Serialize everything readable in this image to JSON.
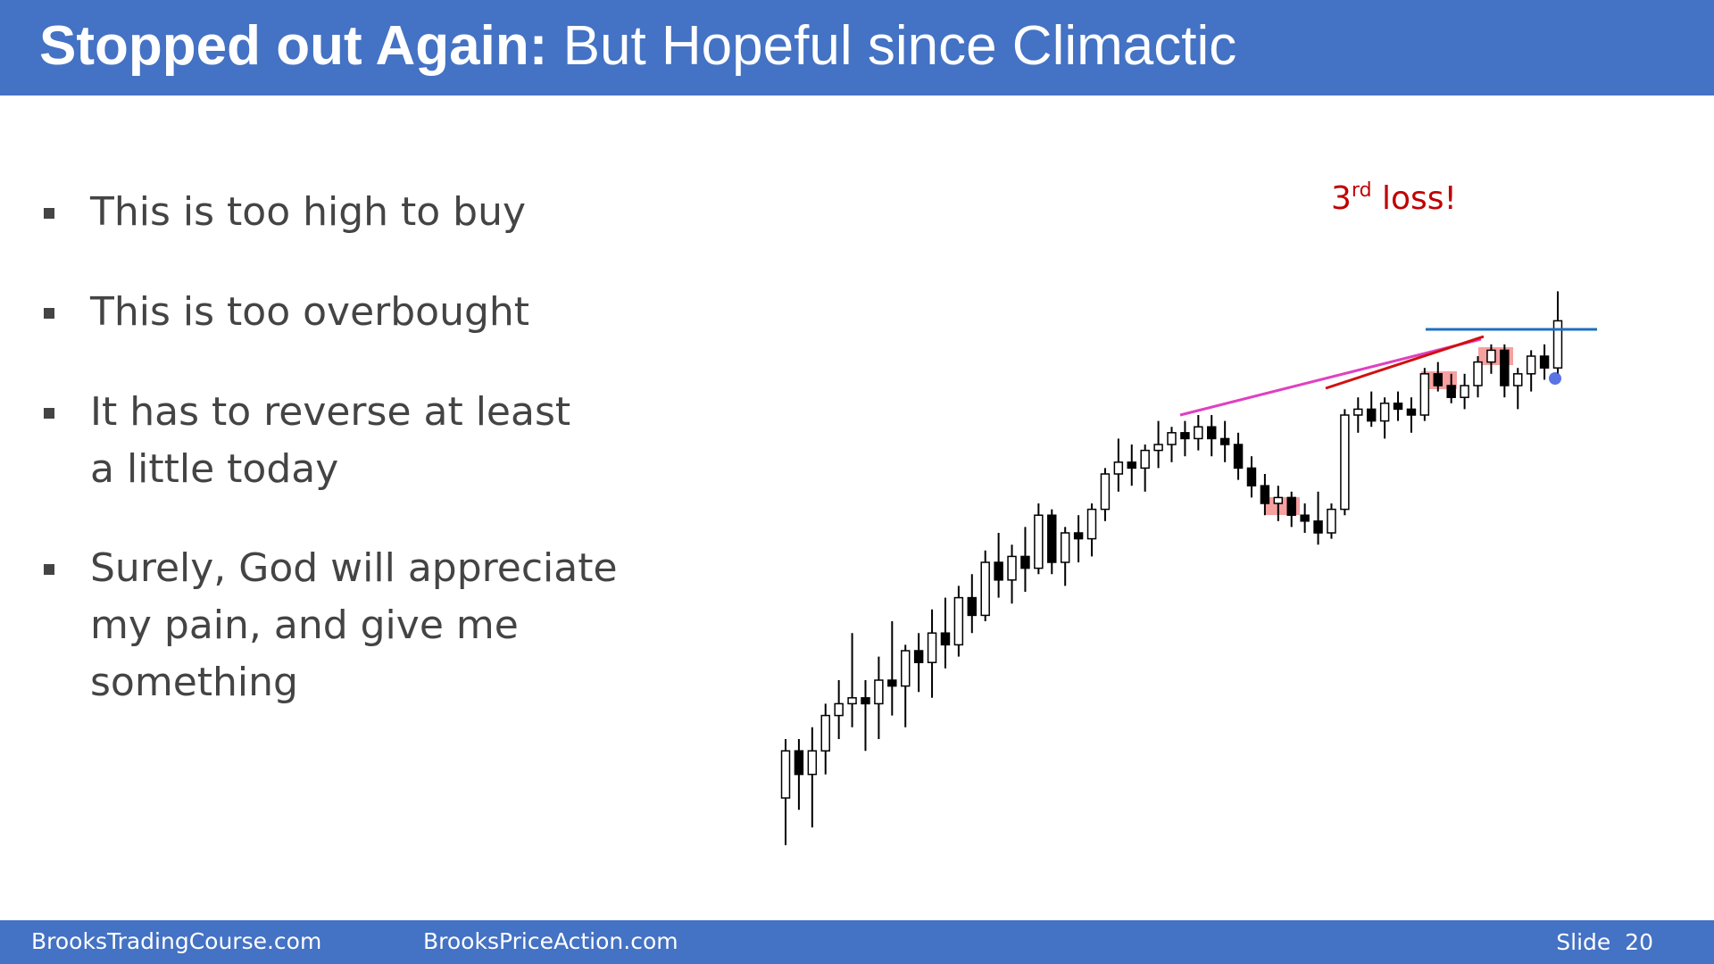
{
  "header": {
    "title_bold": "Stopped out Again:",
    "title_rest": " But Hopeful since Climactic"
  },
  "bullets": [
    [
      "This is too high to buy"
    ],
    [
      "This is too overbought"
    ],
    [
      "It has to reverse at least",
      "a little today"
    ],
    [
      "Surely, God will appreciate",
      "my pain, and give me",
      "something"
    ]
  ],
  "chart_data": {
    "type": "candlestick",
    "annotation": [
      "3",
      "rd",
      " loss!"
    ],
    "ylim": [
      0,
      100
    ],
    "open": [
      10,
      18,
      14,
      18,
      24,
      26,
      27,
      26,
      30,
      29,
      35,
      33,
      38,
      36,
      44,
      41,
      50,
      47,
      51,
      49,
      58,
      50,
      55,
      54,
      59,
      65,
      67,
      66,
      69,
      70,
      72,
      71,
      73,
      71,
      70,
      66,
      63,
      60,
      61,
      58,
      57,
      55,
      59,
      75,
      76,
      74,
      77,
      76,
      75,
      82,
      80,
      78,
      80,
      84,
      86,
      80,
      82,
      85,
      83
    ],
    "high": [
      20,
      20,
      22,
      26,
      30,
      38,
      30,
      34,
      40,
      36,
      38,
      42,
      44,
      46,
      48,
      52,
      55,
      53,
      56,
      60,
      59,
      56,
      58,
      60,
      66,
      71,
      70,
      70,
      74,
      73,
      74,
      75,
      75,
      74,
      72,
      68,
      65,
      63,
      62,
      60,
      62,
      60,
      76,
      78,
      79,
      78,
      79,
      78,
      83,
      84,
      82,
      82,
      85,
      87,
      87,
      83,
      86,
      87,
      96
    ],
    "low": [
      2,
      8,
      5,
      14,
      20,
      22,
      18,
      20,
      24,
      22,
      28,
      27,
      32,
      34,
      38,
      40,
      44,
      43,
      45,
      48,
      48,
      46,
      50,
      51,
      57,
      62,
      63,
      62,
      66,
      67,
      68,
      69,
      68,
      67,
      64,
      61,
      58,
      57,
      56,
      55,
      53,
      54,
      58,
      72,
      73,
      71,
      74,
      72,
      74,
      79,
      77,
      76,
      78,
      82,
      78,
      76,
      79,
      81,
      82
    ],
    "close": [
      18,
      14,
      18,
      24,
      26,
      27,
      26,
      30,
      29,
      35,
      33,
      38,
      36,
      44,
      41,
      50,
      47,
      51,
      49,
      58,
      50,
      55,
      54,
      59,
      65,
      67,
      66,
      69,
      70,
      72,
      71,
      73,
      71,
      70,
      66,
      63,
      60,
      61,
      58,
      57,
      55,
      59,
      75,
      76,
      74,
      77,
      76,
      75,
      82,
      80,
      78,
      80,
      84,
      86,
      80,
      82,
      85,
      83,
      91
    ]
  },
  "footer": {
    "site1": "BrooksTradingCourse.com",
    "site2": "BrooksPriceAction.com",
    "slide": "Slide  20"
  }
}
